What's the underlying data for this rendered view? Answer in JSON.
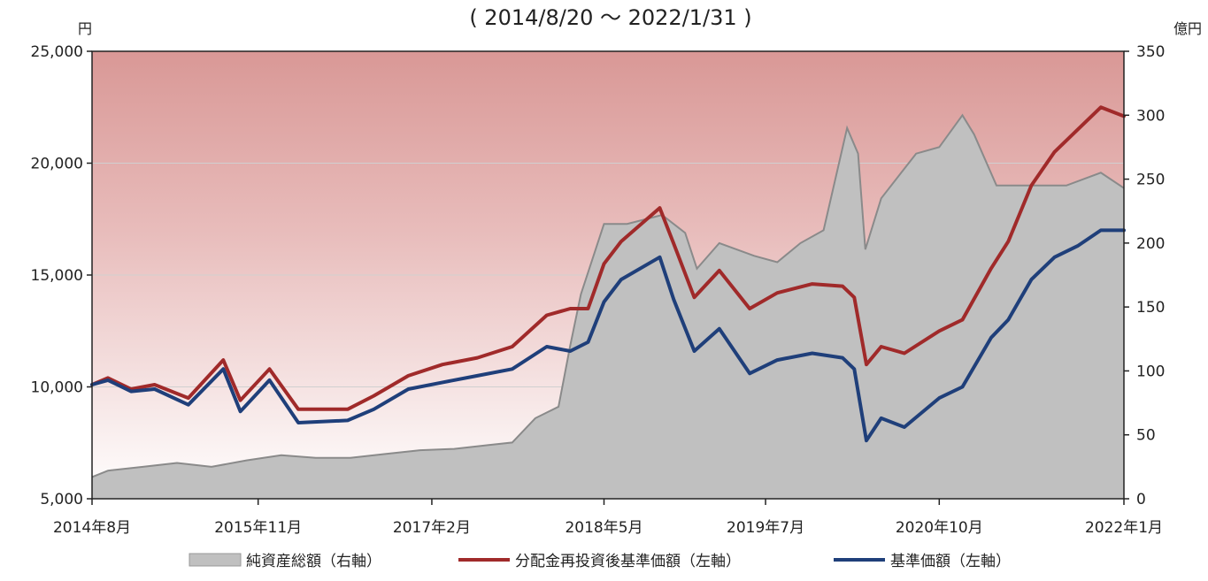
{
  "chart_data": {
    "type": "line",
    "title": "( 2014/8/20 ～ 2022/1/31 )",
    "left_unit": "円",
    "right_unit": "億円",
    "left_ylim": [
      5000,
      25000
    ],
    "right_ylim": [
      0,
      350
    ],
    "left_ticks": [
      "5,000",
      "10,000",
      "15,000",
      "20,000",
      "25,000"
    ],
    "right_ticks": [
      "0",
      "50",
      "100",
      "150",
      "200",
      "250",
      "300",
      "350"
    ],
    "x_range": [
      "2014-08-20",
      "2022-01-31"
    ],
    "x_ticks": [
      {
        "label": "2014年8月",
        "date": "2014-08-20"
      },
      {
        "label": "2015年11月",
        "date": "2015-11-01"
      },
      {
        "label": "2017年2月",
        "date": "2017-02-01"
      },
      {
        "label": "2018年5月",
        "date": "2018-05-01"
      },
      {
        "label": "2019年7月",
        "date": "2019-07-01"
      },
      {
        "label": "2020年10月",
        "date": "2020-10-01"
      },
      {
        "label": "2022年1月",
        "date": "2022-01-31"
      }
    ],
    "grid": true,
    "legend_position": "bottom",
    "series": [
      {
        "name": "純資産総額（右軸）",
        "axis": "right",
        "kind": "area",
        "color": "#c0c0c0",
        "points": [
          [
            "2014-08-20",
            17
          ],
          [
            "2014-10-01",
            22
          ],
          [
            "2015-01-01",
            25
          ],
          [
            "2015-04-01",
            28
          ],
          [
            "2015-07-01",
            25
          ],
          [
            "2015-10-01",
            30
          ],
          [
            "2016-01-01",
            34
          ],
          [
            "2016-04-01",
            32
          ],
          [
            "2016-07-01",
            32
          ],
          [
            "2016-10-01",
            35
          ],
          [
            "2017-01-01",
            38
          ],
          [
            "2017-04-01",
            39
          ],
          [
            "2017-07-01",
            42
          ],
          [
            "2017-09-01",
            44
          ],
          [
            "2017-11-01",
            63
          ],
          [
            "2018-01-01",
            72
          ],
          [
            "2018-02-01",
            120
          ],
          [
            "2018-03-01",
            160
          ],
          [
            "2018-05-01",
            215
          ],
          [
            "2018-07-01",
            215
          ],
          [
            "2018-10-01",
            222
          ],
          [
            "2018-12-01",
            208
          ],
          [
            "2019-01-01",
            180
          ],
          [
            "2019-03-01",
            200
          ],
          [
            "2019-06-01",
            190
          ],
          [
            "2019-08-01",
            185
          ],
          [
            "2019-10-01",
            200
          ],
          [
            "2019-12-01",
            210
          ],
          [
            "2020-02-01",
            290
          ],
          [
            "2020-03-01",
            270
          ],
          [
            "2020-03-20",
            195
          ],
          [
            "2020-05-01",
            235
          ],
          [
            "2020-08-01",
            270
          ],
          [
            "2020-10-01",
            275
          ],
          [
            "2020-12-01",
            300
          ],
          [
            "2021-01-01",
            285
          ],
          [
            "2021-03-01",
            245
          ],
          [
            "2021-06-01",
            245
          ],
          [
            "2021-09-01",
            245
          ],
          [
            "2021-12-01",
            255
          ],
          [
            "2022-01-31",
            243
          ]
        ]
      },
      {
        "name": "分配金再投資後基準価額（左軸）",
        "axis": "left",
        "kind": "line",
        "color": "#a02a2a",
        "points": [
          [
            "2014-08-20",
            10100
          ],
          [
            "2014-10-01",
            10400
          ],
          [
            "2014-12-01",
            9900
          ],
          [
            "2015-02-01",
            10100
          ],
          [
            "2015-05-01",
            9500
          ],
          [
            "2015-08-01",
            11200
          ],
          [
            "2015-09-15",
            9400
          ],
          [
            "2015-12-01",
            10800
          ],
          [
            "2016-02-15",
            9000
          ],
          [
            "2016-06-24",
            9000
          ],
          [
            "2016-09-01",
            9600
          ],
          [
            "2016-12-01",
            10500
          ],
          [
            "2017-03-01",
            11000
          ],
          [
            "2017-06-01",
            11300
          ],
          [
            "2017-09-01",
            11800
          ],
          [
            "2017-12-01",
            13200
          ],
          [
            "2018-02-01",
            13500
          ],
          [
            "2018-03-20",
            13500
          ],
          [
            "2018-05-01",
            15500
          ],
          [
            "2018-06-15",
            16500
          ],
          [
            "2018-09-25",
            18000
          ],
          [
            "2018-11-01",
            16400
          ],
          [
            "2018-12-25",
            14000
          ],
          [
            "2019-03-01",
            15200
          ],
          [
            "2019-05-20",
            13500
          ],
          [
            "2019-08-01",
            14200
          ],
          [
            "2019-11-01",
            14600
          ],
          [
            "2020-01-20",
            14500
          ],
          [
            "2020-02-20",
            14000
          ],
          [
            "2020-03-23",
            11000
          ],
          [
            "2020-05-01",
            11800
          ],
          [
            "2020-07-01",
            11500
          ],
          [
            "2020-10-01",
            12500
          ],
          [
            "2020-12-01",
            13000
          ],
          [
            "2021-02-15",
            15300
          ],
          [
            "2021-04-01",
            16500
          ],
          [
            "2021-06-01",
            19000
          ],
          [
            "2021-08-01",
            20500
          ],
          [
            "2021-10-01",
            21500
          ],
          [
            "2021-12-01",
            22500
          ],
          [
            "2022-01-31",
            22100
          ]
        ]
      },
      {
        "name": "基準価額（左軸）",
        "axis": "left",
        "kind": "line",
        "color": "#1f3f7a",
        "points": [
          [
            "2014-08-20",
            10100
          ],
          [
            "2014-10-01",
            10300
          ],
          [
            "2014-12-01",
            9800
          ],
          [
            "2015-02-01",
            9900
          ],
          [
            "2015-05-01",
            9200
          ],
          [
            "2015-08-01",
            10800
          ],
          [
            "2015-09-15",
            8900
          ],
          [
            "2015-12-01",
            10300
          ],
          [
            "2016-02-15",
            8400
          ],
          [
            "2016-06-24",
            8500
          ],
          [
            "2016-09-01",
            9000
          ],
          [
            "2016-12-01",
            9900
          ],
          [
            "2017-03-01",
            10200
          ],
          [
            "2017-06-01",
            10500
          ],
          [
            "2017-09-01",
            10800
          ],
          [
            "2017-12-01",
            11800
          ],
          [
            "2018-02-01",
            11600
          ],
          [
            "2018-03-20",
            12000
          ],
          [
            "2018-05-01",
            13800
          ],
          [
            "2018-06-15",
            14800
          ],
          [
            "2018-09-25",
            15800
          ],
          [
            "2018-11-01",
            13900
          ],
          [
            "2018-12-25",
            11600
          ],
          [
            "2019-03-01",
            12600
          ],
          [
            "2019-05-20",
            10600
          ],
          [
            "2019-08-01",
            11200
          ],
          [
            "2019-11-01",
            11500
          ],
          [
            "2020-01-20",
            11300
          ],
          [
            "2020-02-20",
            10800
          ],
          [
            "2020-03-23",
            7600
          ],
          [
            "2020-05-01",
            8600
          ],
          [
            "2020-07-01",
            8200
          ],
          [
            "2020-10-01",
            9500
          ],
          [
            "2020-12-01",
            10000
          ],
          [
            "2021-02-15",
            12200
          ],
          [
            "2021-04-01",
            13000
          ],
          [
            "2021-06-01",
            14800
          ],
          [
            "2021-08-01",
            15800
          ],
          [
            "2021-10-01",
            16300
          ],
          [
            "2021-12-01",
            17000
          ],
          [
            "2022-01-31",
            17000
          ]
        ]
      }
    ]
  }
}
